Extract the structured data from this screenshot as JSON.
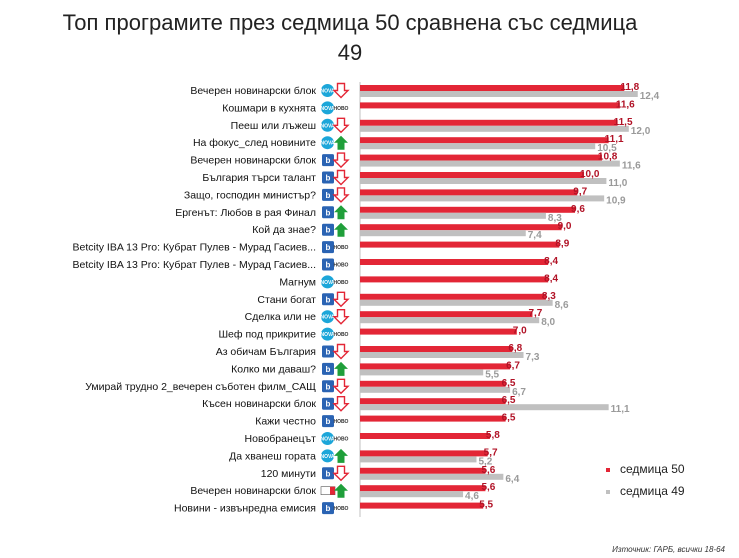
{
  "title": "Топ програмите през седмица 50 сравнена със седмица 49",
  "source": "Източник: ГАРБ, всички 18-64",
  "colors": {
    "current": "#e32636",
    "previous": "#c0c0c0",
    "up": "#1f9f3a",
    "down": "#e32636",
    "nova": "#1ca6d9",
    "btv": "#2a63b3",
    "bnt": "#555555"
  },
  "chart_data": {
    "type": "bar",
    "orientation": "horizontal",
    "title": "Топ програмите през седмица 50 сравнена със седмица 49",
    "xlim": [
      0,
      14
    ],
    "legend_position": "bottom-right",
    "series": [
      {
        "name": "седмица 50",
        "key": "current"
      },
      {
        "name": "седмица 49",
        "key": "previous"
      }
    ],
    "rows": [
      {
        "label": "Вечерен новинарски блок",
        "channel": "nova",
        "trend": "down",
        "current": 11.8,
        "current_label": "11,8",
        "previous": 12.4,
        "previous_label": "12,4"
      },
      {
        "label": "Кошмари в кухнята",
        "channel": "nova",
        "trend": "new",
        "trend_label": "НОВО",
        "current": 11.6,
        "current_label": "11,6",
        "previous": null,
        "previous_label": ""
      },
      {
        "label": "Пееш или лъжеш",
        "channel": "nova",
        "trend": "down",
        "current": 11.5,
        "current_label": "11,5",
        "previous": 12.0,
        "previous_label": "12,0"
      },
      {
        "label": "На фокус_след новините",
        "channel": "nova",
        "trend": "up",
        "current": 11.1,
        "current_label": "11,1",
        "previous": 10.5,
        "previous_label": "10,5"
      },
      {
        "label": "Вечерен новинарски блок",
        "channel": "btv",
        "trend": "down",
        "current": 10.8,
        "current_label": "10,8",
        "previous": 11.6,
        "previous_label": "11,6"
      },
      {
        "label": "България търси талант",
        "channel": "btv",
        "trend": "down",
        "current": 10.0,
        "current_label": "10,0",
        "previous": 11.0,
        "previous_label": "11,0"
      },
      {
        "label": "Защо, господин министър?",
        "channel": "btv",
        "trend": "down",
        "current": 9.7,
        "current_label": "9,7",
        "previous": 10.9,
        "previous_label": "10,9"
      },
      {
        "label": "Ергенът: Любов в рая Финал",
        "channel": "btv",
        "trend": "up",
        "current": 9.6,
        "current_label": "9,6",
        "previous": 8.3,
        "previous_label": "8,3"
      },
      {
        "label": "Кой да знае?",
        "channel": "btv",
        "trend": "up",
        "current": 9.0,
        "current_label": "9,0",
        "previous": 7.4,
        "previous_label": "7,4"
      },
      {
        "label": "Betcity IBA 13 Pro: Кубрат Пулев - Мурад Гасиев...",
        "channel": "btv",
        "trend": "new",
        "trend_label": "НОВО",
        "current": 8.9,
        "current_label": "8,9",
        "previous": null,
        "previous_label": ""
      },
      {
        "label": "Betcity IBA 13 Pro: Кубрат Пулев - Мурад Гасиев...",
        "channel": "btv",
        "trend": "new",
        "trend_label": "НОВО",
        "current": 8.4,
        "current_label": "8,4",
        "previous": null,
        "previous_label": ""
      },
      {
        "label": "Магнум",
        "channel": "nova",
        "trend": "new",
        "trend_label": "НОВО",
        "current": 8.4,
        "current_label": "8,4",
        "previous": null,
        "previous_label": ""
      },
      {
        "label": "Стани богат",
        "channel": "btv",
        "trend": "down",
        "current": 8.3,
        "current_label": "8,3",
        "previous": 8.6,
        "previous_label": "8,6"
      },
      {
        "label": "Сделка или не",
        "channel": "nova",
        "trend": "down",
        "current": 7.7,
        "current_label": "7,7",
        "previous": 8.0,
        "previous_label": "8,0"
      },
      {
        "label": "Шеф под прикритие",
        "channel": "nova",
        "trend": "new",
        "trend_label": "НОВО",
        "current": 7.0,
        "current_label": "7,0",
        "previous": null,
        "previous_label": ""
      },
      {
        "label": "Аз обичам България",
        "channel": "btv",
        "trend": "down",
        "current": 6.8,
        "current_label": "6,8",
        "previous": 7.3,
        "previous_label": "7,3"
      },
      {
        "label": "Колко ми даваш?",
        "channel": "btv",
        "trend": "up",
        "current": 6.7,
        "current_label": "6,7",
        "previous": 5.5,
        "previous_label": "5,5"
      },
      {
        "label": "Умирай трудно 2_вечерен съботен филм_САЩ",
        "channel": "btv",
        "trend": "down",
        "current": 6.5,
        "current_label": "6,5",
        "previous": 6.7,
        "previous_label": "6,7"
      },
      {
        "label": "Късен новинарски блок",
        "channel": "btv",
        "trend": "down",
        "current": 6.5,
        "current_label": "6,5",
        "previous": 11.1,
        "previous_label": "11,1"
      },
      {
        "label": "Кажи честно",
        "channel": "btv",
        "trend": "new",
        "trend_label": "НОВО",
        "current": 6.5,
        "current_label": "6,5",
        "previous": null,
        "previous_label": ""
      },
      {
        "label": "Новобранецът",
        "channel": "nova",
        "trend": "new",
        "trend_label": "НОВО",
        "current": 5.8,
        "current_label": "5,8",
        "previous": null,
        "previous_label": ""
      },
      {
        "label": "Да хванеш гората",
        "channel": "nova",
        "trend": "up",
        "current": 5.7,
        "current_label": "5,7",
        "previous": 5.2,
        "previous_label": "5,2"
      },
      {
        "label": "120 минути",
        "channel": "btv",
        "trend": "down",
        "current": 5.6,
        "current_label": "5,6",
        "previous": 6.4,
        "previous_label": "6,4"
      },
      {
        "label": "Вечерен новинарски блок",
        "channel": "bnt",
        "trend": "up",
        "current": 5.6,
        "current_label": "5,6",
        "previous": 4.6,
        "previous_label": "4,6"
      },
      {
        "label": "Новини - извънредна емисия",
        "channel": "btv",
        "trend": "new",
        "trend_label": "НОВО",
        "current": 5.5,
        "current_label": "5,5",
        "previous": null,
        "previous_label": ""
      }
    ]
  }
}
